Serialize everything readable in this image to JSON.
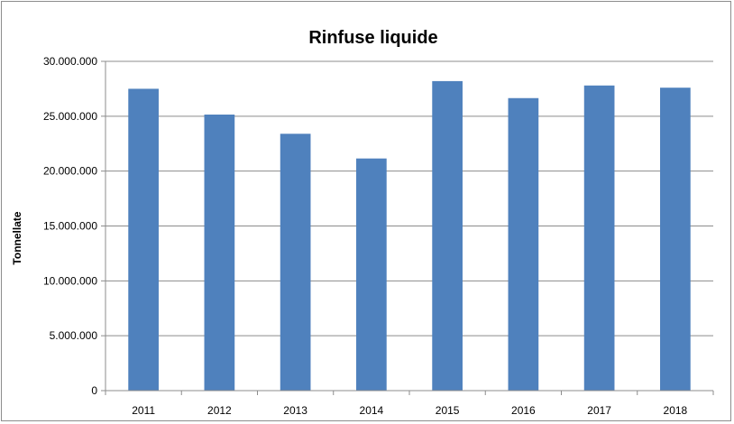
{
  "chart_data": {
    "type": "bar",
    "title": "Rinfuse liquide",
    "xlabel": "",
    "ylabel": "Tonnellate",
    "categories": [
      "2011",
      "2012",
      "2013",
      "2014",
      "2015",
      "2016",
      "2017",
      "2018"
    ],
    "values": [
      27500000,
      25150000,
      23400000,
      21150000,
      28200000,
      26650000,
      27800000,
      27600000
    ],
    "ylim": [
      0,
      30000000
    ],
    "y_ticks": [
      0,
      5000000,
      10000000,
      15000000,
      20000000,
      25000000,
      30000000
    ],
    "y_tick_labels": [
      "0",
      "5.000.000",
      "10.000.000",
      "15.000.000",
      "20.000.000",
      "25.000.000",
      "30.000.000"
    ],
    "grid": true,
    "legend": "none",
    "bar_color": "#4f81bd",
    "grid_color": "#8c8c8c",
    "axis_color": "#8c8c8c"
  }
}
